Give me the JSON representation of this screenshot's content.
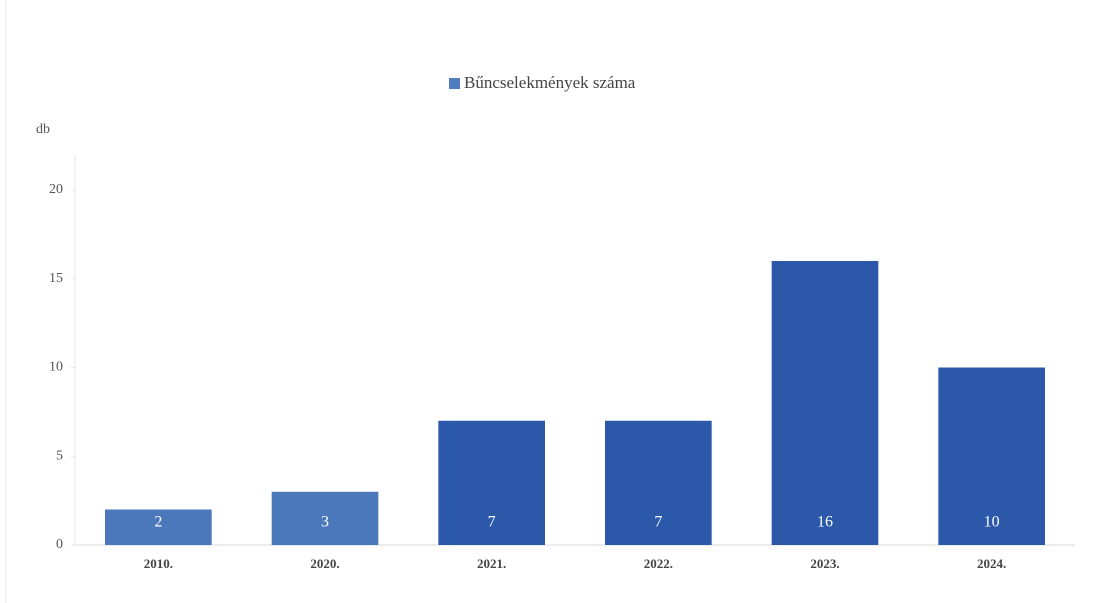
{
  "chart_data": {
    "type": "bar",
    "y_label": "db",
    "categories": [
      "2010.",
      "2020.",
      "2021.",
      "2022.",
      "2023.",
      "2024."
    ],
    "series": [
      {
        "name": "Bűncselekmények száma",
        "color": "#4f7bbf",
        "values": [
          2,
          3,
          7,
          7,
          16,
          10
        ],
        "colors": [
          "#4a78ba",
          "#4a78ba",
          "#2c58aa",
          "#2c58aa",
          "#2c58aa",
          "#2c58aa"
        ]
      }
    ],
    "ylim": [
      0,
      20
    ],
    "yticks": [
      0,
      5,
      10,
      15,
      20
    ],
    "grid": false,
    "legend": "top",
    "data_labels": true
  }
}
